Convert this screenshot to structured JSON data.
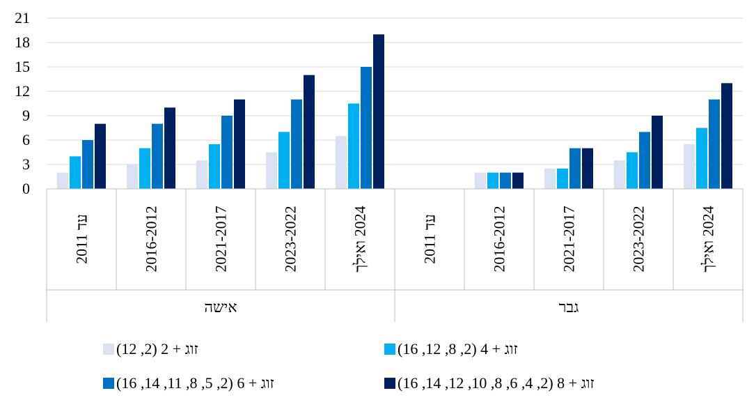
{
  "chart_data": {
    "type": "bar",
    "title": "",
    "xlabel": "",
    "ylabel": "",
    "ylim": [
      0,
      21
    ],
    "yticks": [
      0,
      3,
      6,
      9,
      12,
      15,
      18,
      21
    ],
    "grid": true,
    "legend_position": "bottom",
    "groups": [
      {
        "name": "אישה",
        "categories": [
          "עד 2011",
          "2016-2012",
          "2021-2017",
          "2023-2022",
          "2024 ואילך"
        ]
      },
      {
        "name": "גבר",
        "categories": [
          "עד 2011",
          "2016-2012",
          "2021-2017",
          "2023-2022",
          "2024 ואילך"
        ]
      }
    ],
    "series": [
      {
        "name": "זוג + 2 (2, 12)",
        "color": "#d9e1f2",
        "values": [
          2,
          3,
          3.5,
          4.5,
          6.5,
          0,
          2,
          2.5,
          3.5,
          5.5
        ]
      },
      {
        "name": "זוג + 4 (2, 8, 12, 16)",
        "color": "#00b0f0",
        "values": [
          4,
          5,
          5.5,
          7,
          10.5,
          0,
          2,
          2.5,
          4.5,
          7.5
        ]
      },
      {
        "name": "זוג + 6 (2, 5, 8, 11, 14, 16)",
        "color": "#0070c0",
        "values": [
          6,
          8,
          9,
          11,
          15,
          0,
          2,
          5,
          7,
          11
        ]
      },
      {
        "name": "זוג + 8 (2, 4, 6, 8, 10, 12, 14, 16)",
        "color": "#002060",
        "values": [
          8,
          10,
          11,
          14,
          19,
          0,
          2,
          5,
          9,
          13
        ]
      }
    ]
  }
}
